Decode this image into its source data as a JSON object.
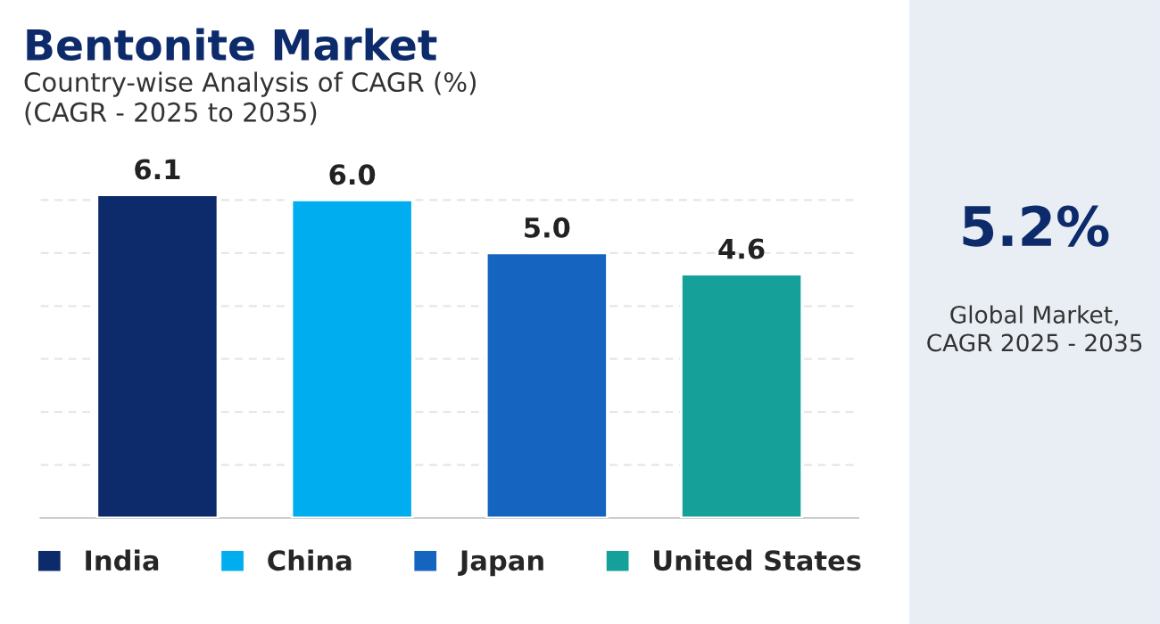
{
  "chart_data": {
    "type": "bar",
    "title": "Bentonite Market",
    "subtitle": "Country-wise Analysis of CAGR (%)\n(CAGR - 2025 to 2035)",
    "categories": [
      null,
      null,
      null,
      null
    ],
    "series": [
      {
        "name": "India",
        "color": "#0d2b6b",
        "values": [
          6.1,
          null,
          null,
          null
        ],
        "value_labels": [
          "6.1",
          null,
          null,
          null
        ]
      },
      {
        "name": "China",
        "color": "#00aeef",
        "values": [
          null,
          6.0,
          null,
          null
        ],
        "value_labels": [
          null,
          "6.0",
          null,
          null
        ]
      },
      {
        "name": "Japan",
        "color": "#1565c0",
        "values": [
          null,
          null,
          5.0,
          null
        ],
        "value_labels": [
          null,
          null,
          "5.0",
          null
        ]
      },
      {
        "name": "United States",
        "color": "#16a09a",
        "values": [
          null,
          null,
          null,
          4.6
        ],
        "value_labels": [
          null,
          null,
          null,
          "4.6"
        ]
      }
    ],
    "stacked": true,
    "legend": "bottom",
    "tick_labels": false,
    "grid": "y",
    "annotations": [
      "5.2%",
      "Global Market,\nCAGR 2025 - 2035"
    ]
  }
}
